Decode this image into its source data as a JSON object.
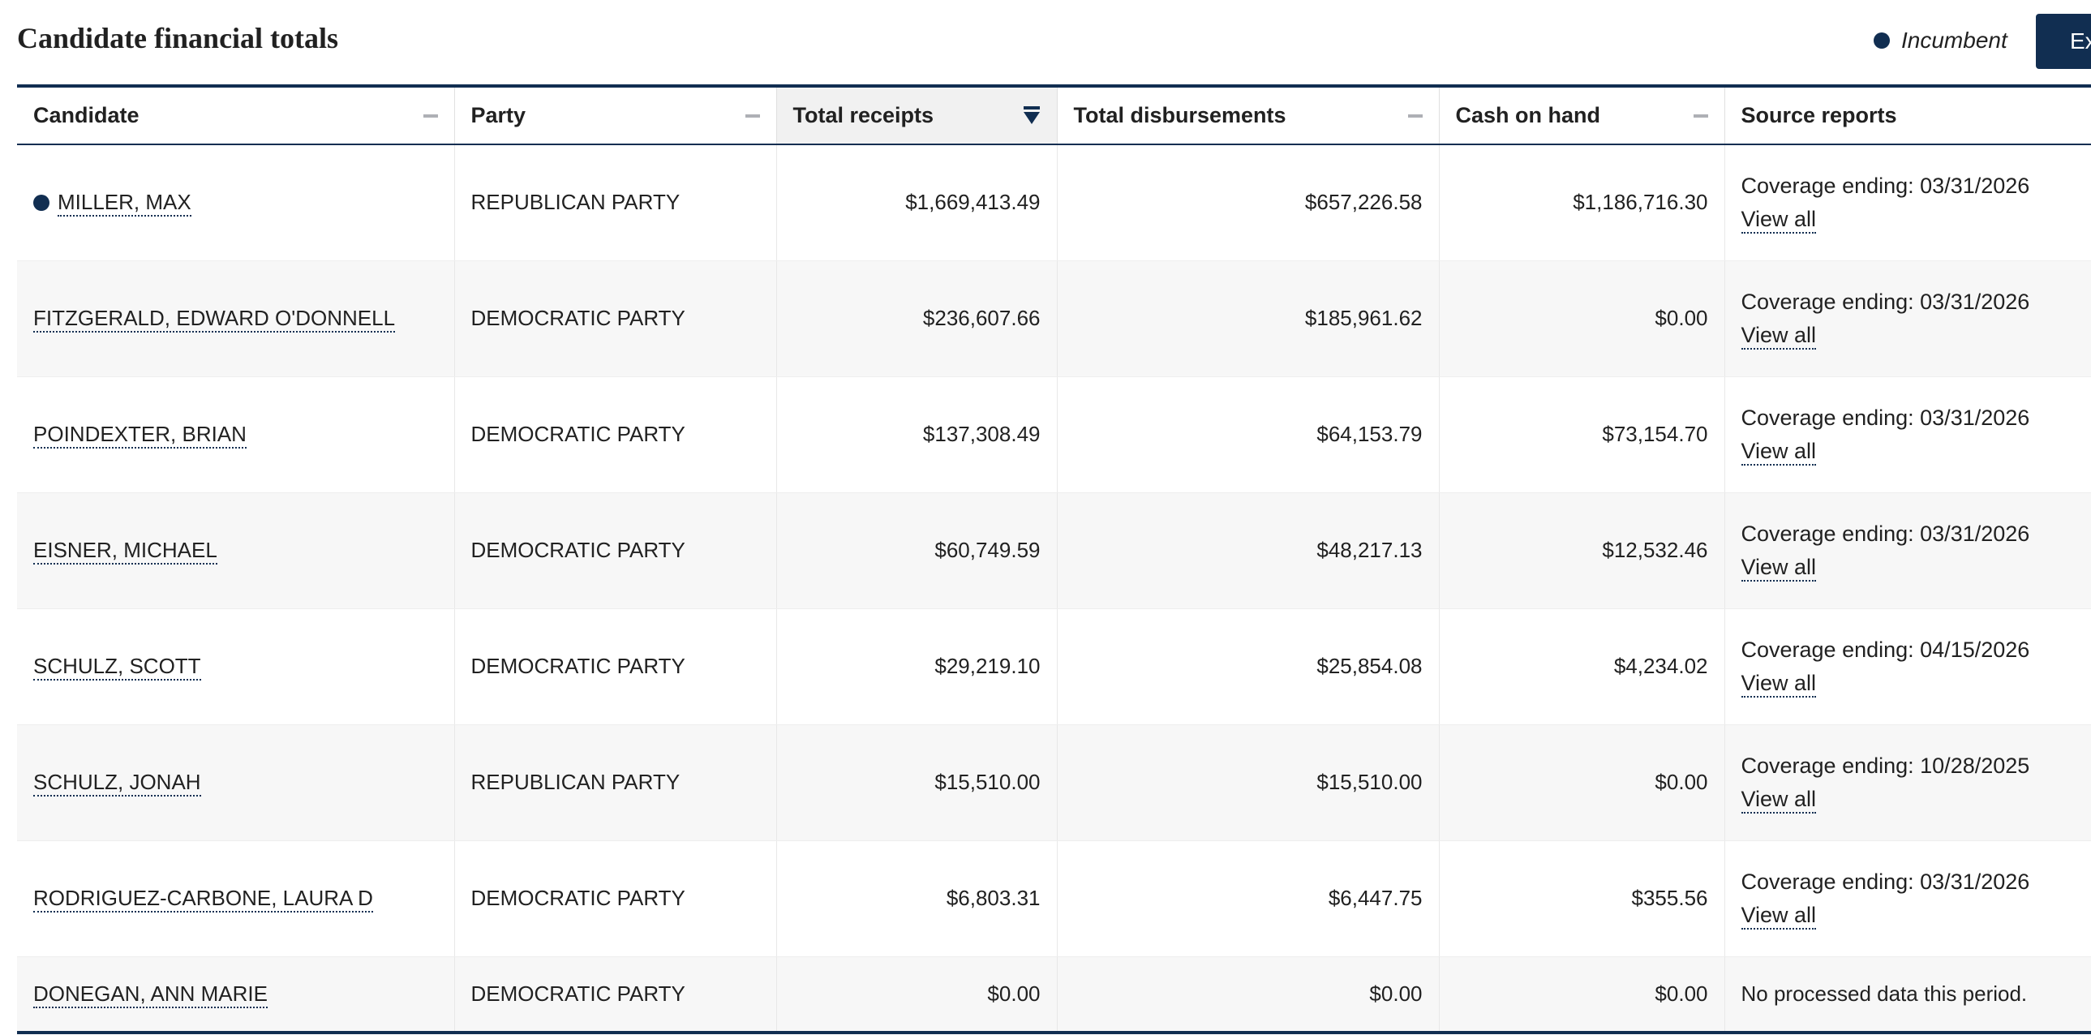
{
  "title": "Candidate financial totals",
  "legend": {
    "label": "Incumbent",
    "color": "#112e51"
  },
  "export_button": {
    "label": "Export"
  },
  "table": {
    "columns": [
      {
        "key": "candidate",
        "label": "Candidate",
        "sort": "none"
      },
      {
        "key": "party",
        "label": "Party",
        "sort": "none"
      },
      {
        "key": "receipts",
        "label": "Total receipts",
        "sort": "descending"
      },
      {
        "key": "disbursements",
        "label": "Total disbursements",
        "sort": "none"
      },
      {
        "key": "cash",
        "label": "Cash on hand",
        "sort": "none"
      },
      {
        "key": "source",
        "label": "Source reports",
        "sort": "none"
      }
    ],
    "rows": [
      {
        "candidate": "MILLER, MAX",
        "incumbent": true,
        "party": "REPUBLICAN PARTY",
        "receipts": "$1,669,413.49",
        "disbursements": "$657,226.58",
        "cash": "$1,186,716.30",
        "coverage": "Coverage ending: 03/31/2026",
        "view_all": "View all"
      },
      {
        "candidate": "FITZGERALD, EDWARD O'DONNELL",
        "incumbent": false,
        "party": "DEMOCRATIC PARTY",
        "receipts": "$236,607.66",
        "disbursements": "$185,961.62",
        "cash": "$0.00",
        "coverage": "Coverage ending: 03/31/2026",
        "view_all": "View all"
      },
      {
        "candidate": "POINDEXTER, BRIAN",
        "incumbent": false,
        "party": "DEMOCRATIC PARTY",
        "receipts": "$137,308.49",
        "disbursements": "$64,153.79",
        "cash": "$73,154.70",
        "coverage": "Coverage ending: 03/31/2026",
        "view_all": "View all"
      },
      {
        "candidate": "EISNER, MICHAEL",
        "incumbent": false,
        "party": "DEMOCRATIC PARTY",
        "receipts": "$60,749.59",
        "disbursements": "$48,217.13",
        "cash": "$12,532.46",
        "coverage": "Coverage ending: 03/31/2026",
        "view_all": "View all"
      },
      {
        "candidate": "SCHULZ, SCOTT",
        "incumbent": false,
        "party": "DEMOCRATIC PARTY",
        "receipts": "$29,219.10",
        "disbursements": "$25,854.08",
        "cash": "$4,234.02",
        "coverage": "Coverage ending: 04/15/2026",
        "view_all": "View all"
      },
      {
        "candidate": "SCHULZ, JONAH",
        "incumbent": false,
        "party": "REPUBLICAN PARTY",
        "receipts": "$15,510.00",
        "disbursements": "$15,510.00",
        "cash": "$0.00",
        "coverage": "Coverage ending: 10/28/2025",
        "view_all": "View all"
      },
      {
        "candidate": "RODRIGUEZ-CARBONE, LAURA D",
        "incumbent": false,
        "party": "DEMOCRATIC PARTY",
        "receipts": "$6,803.31",
        "disbursements": "$6,447.75",
        "cash": "$355.56",
        "coverage": "Coverage ending: 03/31/2026",
        "view_all": "View all"
      },
      {
        "candidate": "DONEGAN, ANN MARIE",
        "incumbent": false,
        "party": "DEMOCRATIC PARTY",
        "receipts": "$0.00",
        "disbursements": "$0.00",
        "cash": "$0.00",
        "coverage": "No processed data this period.",
        "view_all": ""
      }
    ]
  }
}
